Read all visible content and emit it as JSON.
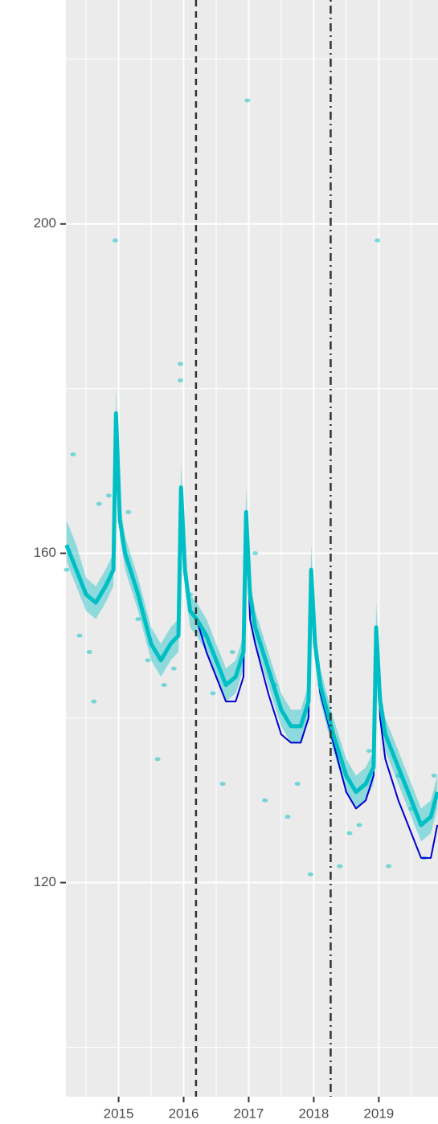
{
  "chart_data": {
    "type": "line",
    "xlim": [
      2014.19,
      2019.91
    ],
    "ylim": [
      94,
      227.2
    ],
    "xticks": [
      2015,
      2016,
      2017,
      2018,
      2019
    ],
    "yticks": [
      120,
      160,
      200
    ],
    "xminor": [
      2014.5,
      2015.5,
      2016.5,
      2017.5,
      2018.5,
      2019.5
    ],
    "yminor": [
      100,
      140,
      180,
      220
    ],
    "grid": true,
    "x": [
      2014.2,
      2014.35,
      2014.5,
      2014.65,
      2014.8,
      2014.92,
      2014.96,
      2015.02,
      2015.1,
      2015.3,
      2015.5,
      2015.65,
      2015.8,
      2015.92,
      2015.96,
      2016.02,
      2016.1,
      2016.2,
      2016.35,
      2016.5,
      2016.65,
      2016.8,
      2016.92,
      2016.96,
      2017.02,
      2017.1,
      2017.3,
      2017.5,
      2017.65,
      2017.8,
      2017.92,
      2017.96,
      2018.02,
      2018.1,
      2018.3,
      2018.5,
      2018.65,
      2018.8,
      2018.92,
      2018.96,
      2019.02,
      2019.1,
      2019.3,
      2019.5,
      2019.65,
      2019.8,
      2019.9
    ],
    "ribbon": {
      "color": "#00bfc4",
      "lower": [
        159,
        156,
        153,
        152,
        154,
        156,
        174,
        162,
        158,
        153,
        147,
        145,
        147,
        148,
        165,
        156,
        151,
        150,
        148,
        145,
        142,
        143,
        146,
        162,
        153,
        149,
        144,
        139,
        137,
        137,
        140,
        155,
        147,
        142,
        136,
        131,
        129,
        130,
        132,
        148,
        140,
        136,
        132,
        128,
        125,
        126,
        129
      ],
      "upper": [
        164,
        161,
        157,
        156,
        158,
        160,
        180,
        166,
        162,
        157,
        151,
        149,
        151,
        152,
        171,
        160,
        155,
        154,
        152,
        149,
        146,
        147,
        150,
        168,
        157,
        153,
        148,
        143,
        141,
        141,
        144,
        161,
        151,
        146,
        140,
        135,
        133,
        134,
        136,
        154,
        144,
        140,
        136,
        132,
        129,
        130,
        133
      ]
    },
    "series": [
      {
        "color": "#0000cd",
        "width": 2,
        "values": [
          161,
          158,
          155,
          154,
          156,
          158,
          177,
          164,
          160,
          155,
          149,
          147,
          149,
          150,
          168,
          158,
          153,
          152,
          148,
          145,
          142,
          142,
          145,
          165,
          152,
          149,
          143,
          138,
          137,
          137,
          140,
          158,
          148,
          143,
          137,
          131,
          129,
          130,
          133,
          151,
          140,
          135,
          130,
          126,
          123,
          123,
          127
        ]
      },
      {
        "color": "#00bfc4",
        "width": 5,
        "values": [
          161,
          158,
          155,
          154,
          156,
          158,
          177,
          164,
          160,
          155,
          149,
          147,
          149,
          150,
          168,
          158,
          153,
          152,
          150,
          147,
          144,
          145,
          148,
          165,
          155,
          151,
          146,
          141,
          139,
          139,
          142,
          158,
          149,
          144,
          138,
          133,
          131,
          132,
          134,
          151,
          142,
          138,
          134,
          130,
          127,
          128,
          131
        ]
      }
    ],
    "points": {
      "color": "#00bfc4",
      "x": [
        2014.2,
        2014.3,
        2014.4,
        2014.55,
        2014.62,
        2014.7,
        2014.85,
        2014.95,
        2015.15,
        2015.3,
        2015.45,
        2015.6,
        2015.7,
        2015.85,
        2015.95,
        2015.95,
        2016.1,
        2016.3,
        2016.45,
        2016.6,
        2016.75,
        2016.98,
        2017.1,
        2017.25,
        2017.4,
        2017.6,
        2017.75,
        2017.95,
        2018.1,
        2018.25,
        2018.4,
        2018.55,
        2018.7,
        2018.85,
        2018.98,
        2019.15,
        2019.3,
        2019.5,
        2019.7,
        2019.85
      ],
      "values": [
        158,
        172,
        150,
        148,
        142,
        166,
        167,
        198,
        165,
        152,
        147,
        135,
        144,
        146,
        183,
        181,
        155,
        150,
        143,
        132,
        148,
        215,
        160,
        130,
        144,
        128,
        132,
        121,
        144,
        139,
        122,
        126,
        127,
        136,
        198,
        122,
        133,
        129,
        123,
        133
      ]
    },
    "vlines": [
      {
        "x": 2016.19,
        "style": "dashed"
      },
      {
        "x": 2018.26,
        "style": "dotdash"
      }
    ]
  }
}
